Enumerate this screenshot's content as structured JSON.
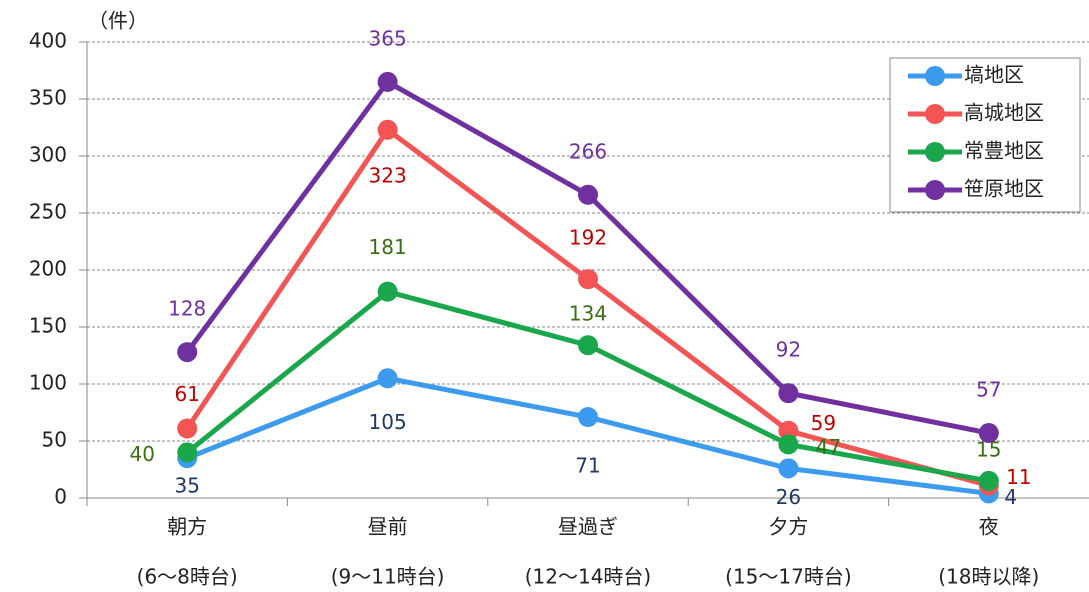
{
  "chart_data": {
    "type": "line",
    "ylabel": "（件）",
    "categories": [
      [
        "朝方",
        "(6～8時台)"
      ],
      [
        "昼前",
        "(9～11時台)"
      ],
      [
        "昼過ぎ",
        "(12～14時台)"
      ],
      [
        "夕方",
        "(15～17時台)"
      ],
      [
        "夜",
        "(18時以降)"
      ]
    ],
    "series": [
      {
        "name": "塙地区",
        "color": "#3d9bef",
        "label_color": "#1f3864",
        "values": [
          35,
          105,
          71,
          26,
          4
        ]
      },
      {
        "name": "高城地区",
        "color": "#f55454",
        "label_color": "#c00000",
        "values": [
          61,
          323,
          192,
          59,
          11
        ]
      },
      {
        "name": "常豊地区",
        "color": "#1aa64a",
        "label_color": "#3b6e14",
        "values": [
          40,
          181,
          134,
          47,
          15
        ]
      },
      {
        "name": "笹原地区",
        "color": "#7030a0",
        "label_color": "#7030a0",
        "values": [
          128,
          365,
          266,
          92,
          57
        ]
      }
    ],
    "ylim": [
      0,
      400
    ],
    "yticks": [
      0,
      50,
      100,
      150,
      200,
      250,
      300,
      350,
      400
    ],
    "grid": true,
    "legend": "upper right"
  }
}
